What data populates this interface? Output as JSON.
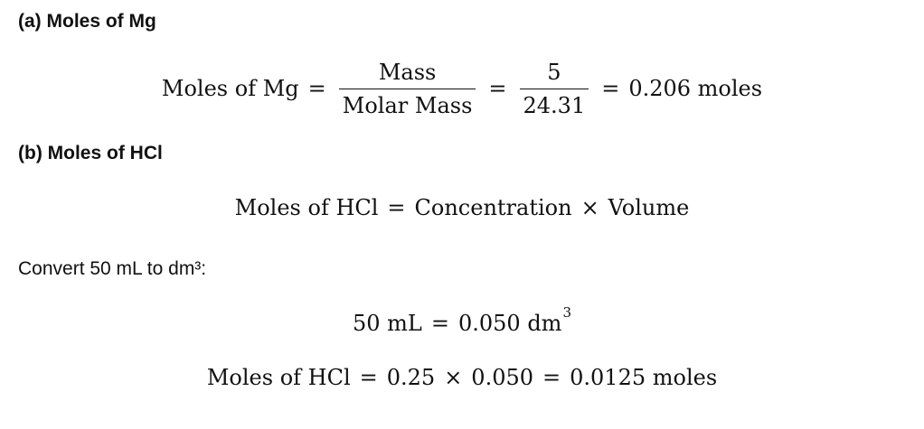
{
  "part_a": {
    "heading": "(a) Moles of Mg",
    "equation": {
      "lhs": "Moles of Mg",
      "eq1": "=",
      "frac1_num": "Mass",
      "frac1_den": "Molar Mass",
      "eq2": "=",
      "frac2_num": "5",
      "frac2_den": "24.31",
      "eq3": "=",
      "result": "0.206 moles"
    }
  },
  "part_b": {
    "heading": "(b) Moles of HCl",
    "formula": {
      "lhs": "Moles of HCl",
      "eq": "=",
      "term1": "Concentration",
      "times": "×",
      "term2": "Volume"
    },
    "convert_text": "Convert 50 mL to dm³:",
    "conversion": {
      "lhs": "50 mL",
      "eq": "=",
      "rhs": "0.050 dm",
      "exponent": "3"
    },
    "calculation": {
      "lhs": "Moles of HCl",
      "eq1": "=",
      "a": "0.25",
      "times": "×",
      "b": "0.050",
      "eq2": "=",
      "result": "0.0125 moles"
    }
  }
}
